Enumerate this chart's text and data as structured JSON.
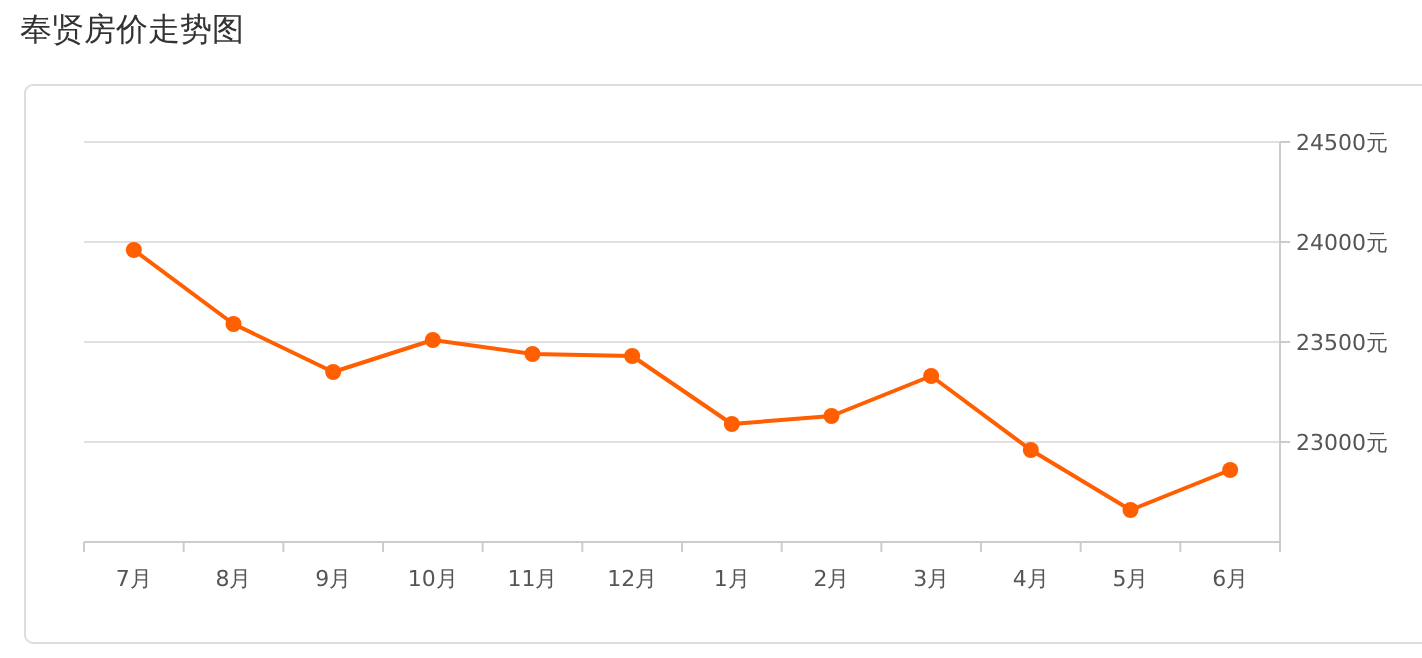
{
  "chart_data": {
    "type": "line",
    "title": "奉贤房价走势图",
    "categories": [
      "7月",
      "8月",
      "9月",
      "10月",
      "11月",
      "12月",
      "1月",
      "2月",
      "3月",
      "4月",
      "5月",
      "6月"
    ],
    "series": [
      {
        "color": "#ff5f00",
        "values": [
          23960,
          23590,
          23350,
          23510,
          23440,
          23430,
          23090,
          23130,
          23330,
          22960,
          22660,
          22860
        ]
      }
    ],
    "ylim": [
      22500,
      24500
    ],
    "yticks": [
      {
        "value": 23000,
        "label": "23000元"
      },
      {
        "value": 23500,
        "label": "23500元"
      },
      {
        "value": 24000,
        "label": "24000元"
      },
      {
        "value": 24500,
        "label": "24500元"
      }
    ],
    "grid": "y",
    "marker": "circle",
    "line_style": "solid"
  }
}
